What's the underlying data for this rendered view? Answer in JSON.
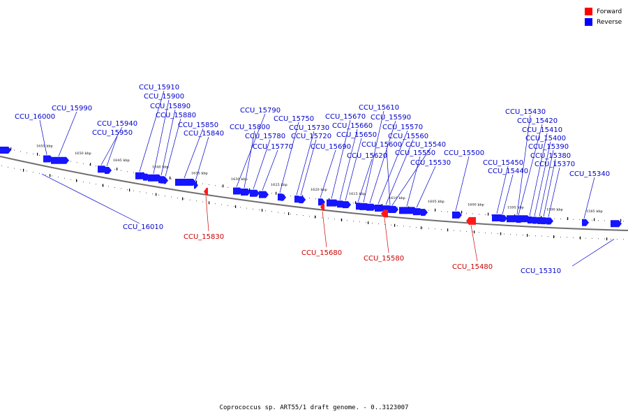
{
  "legend": {
    "forward": {
      "label": "Forward",
      "color": "#ff0000"
    },
    "reverse": {
      "label": "Reverse",
      "color": "#0000ff"
    }
  },
  "caption": "Coprococcus sp. ART55/1 draft genome. - 0..3123007",
  "colors": {
    "backbone": "#6e6e6e",
    "forward_label": "#cc0000",
    "reverse_label": "#0000cc"
  },
  "scale_ticks": [
    "1655 kbp",
    "1650 kbp",
    "1645 kbp",
    "1640 kbp",
    "1635 kbp",
    "1630 kbp",
    "1625 kbp",
    "1620 kbp",
    "1615 kbp",
    "1610 kbp",
    "1605 kbp",
    "1600 kbp",
    "1595 kbp",
    "1590 kbp",
    "1585 kbp"
  ],
  "genes": [
    {
      "label": "CCU_16000",
      "strand": "reverse"
    },
    {
      "label": "CCU_15990",
      "strand": "reverse"
    },
    {
      "label": "CCU_16010",
      "strand": "reverse"
    },
    {
      "label": "CCU_15940",
      "strand": "reverse"
    },
    {
      "label": "CCU_15950",
      "strand": "reverse"
    },
    {
      "label": "CCU_15910",
      "strand": "reverse"
    },
    {
      "label": "CCU_15900",
      "strand": "reverse"
    },
    {
      "label": "CCU_15890",
      "strand": "reverse"
    },
    {
      "label": "CCU_15880",
      "strand": "reverse"
    },
    {
      "label": "CCU_15850",
      "strand": "reverse"
    },
    {
      "label": "CCU_15840",
      "strand": "reverse"
    },
    {
      "label": "CCU_15830",
      "strand": "forward"
    },
    {
      "label": "CCU_15790",
      "strand": "reverse"
    },
    {
      "label": "CCU_15800",
      "strand": "reverse"
    },
    {
      "label": "CCU_15780",
      "strand": "reverse"
    },
    {
      "label": "CCU_15770",
      "strand": "reverse"
    },
    {
      "label": "CCU_15750",
      "strand": "reverse"
    },
    {
      "label": "CCU_15730",
      "strand": "reverse"
    },
    {
      "label": "CCU_15720",
      "strand": "reverse"
    },
    {
      "label": "CCU_15690",
      "strand": "reverse"
    },
    {
      "label": "CCU_15680",
      "strand": "forward"
    },
    {
      "label": "CCU_15670",
      "strand": "reverse"
    },
    {
      "label": "CCU_15660",
      "strand": "reverse"
    },
    {
      "label": "CCU_15650",
      "strand": "reverse"
    },
    {
      "label": "CCU_15620",
      "strand": "reverse"
    },
    {
      "label": "CCU_15610",
      "strand": "reverse"
    },
    {
      "label": "CCU_15590",
      "strand": "reverse"
    },
    {
      "label": "CCU_15570",
      "strand": "reverse"
    },
    {
      "label": "CCU_15560",
      "strand": "reverse"
    },
    {
      "label": "CCU_15600",
      "strand": "reverse"
    },
    {
      "label": "CCU_15580",
      "strand": "forward"
    },
    {
      "label": "CCU_15540",
      "strand": "reverse"
    },
    {
      "label": "CCU_15550",
      "strand": "reverse"
    },
    {
      "label": "CCU_15530",
      "strand": "reverse"
    },
    {
      "label": "CCU_15500",
      "strand": "reverse"
    },
    {
      "label": "CCU_15480",
      "strand": "forward"
    },
    {
      "label": "CCU_15430",
      "strand": "reverse"
    },
    {
      "label": "CCU_15420",
      "strand": "reverse"
    },
    {
      "label": "CCU_15410",
      "strand": "reverse"
    },
    {
      "label": "CCU_15400",
      "strand": "reverse"
    },
    {
      "label": "CCU_15390",
      "strand": "reverse"
    },
    {
      "label": "CCU_15380",
      "strand": "reverse"
    },
    {
      "label": "CCU_15370",
      "strand": "reverse"
    },
    {
      "label": "CCU_15450",
      "strand": "reverse"
    },
    {
      "label": "CCU_15440",
      "strand": "reverse"
    },
    {
      "label": "CCU_15340",
      "strand": "reverse"
    },
    {
      "label": "CCU_15310",
      "strand": "reverse"
    }
  ]
}
